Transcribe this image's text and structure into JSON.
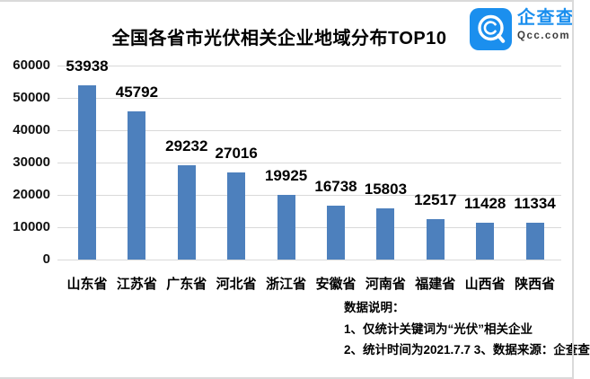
{
  "header": {
    "logo": {
      "name": "企查查",
      "domain": "Qcc.com",
      "color": "#1b8fee"
    }
  },
  "chart_data": {
    "type": "bar",
    "title": "全国各省市光伏相关企业地域分布TOP10",
    "categories": [
      "山东省",
      "江苏省",
      "广东省",
      "河北省",
      "浙江省",
      "安徽省",
      "河南省",
      "福建省",
      "山西省",
      "陕西省"
    ],
    "values": [
      53938,
      45792,
      29232,
      27016,
      19925,
      16738,
      15803,
      12517,
      11428,
      11334
    ],
    "xlabel": "",
    "ylabel": "",
    "ylim": [
      0,
      60000
    ],
    "yticks": [
      0,
      10000,
      20000,
      30000,
      40000,
      50000,
      60000
    ],
    "grid": true,
    "legend": false,
    "data_labels": true,
    "bar_color": "#4d80bd",
    "gridline_color": "#d9d9d9"
  },
  "notes": {
    "heading": "数据说明：",
    "line1": "1、仅统计关键词为“光伏”相关企业",
    "line2": "2、统计时间为2021.7.7 3、数据来源：企查查"
  }
}
